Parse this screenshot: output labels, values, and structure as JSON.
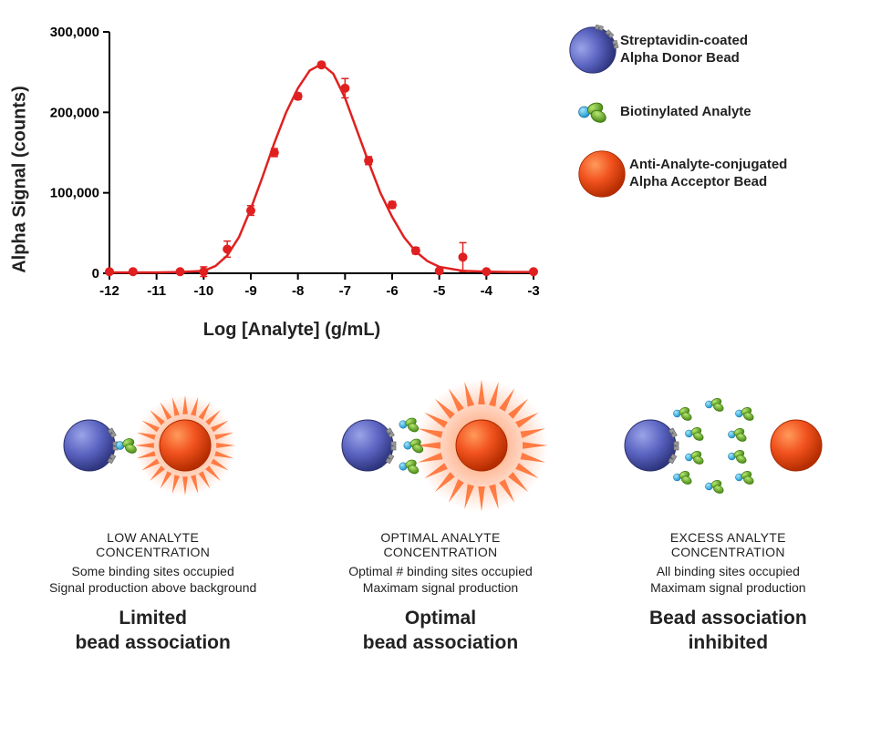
{
  "chart": {
    "type": "scatter-line",
    "ylabel": "Alpha Signal (counts)",
    "xlabel": "Log [Analyte] (g/mL)",
    "ylim": [
      0,
      300000
    ],
    "xlim": [
      -12,
      -3
    ],
    "ytick_step": 100000,
    "ytick_labels": [
      "0",
      "100,000",
      "200,000",
      "300,000"
    ],
    "xtick_step": 1,
    "xtick_labels": [
      "-12",
      "-11",
      "-10",
      "-9",
      "-8",
      "-7",
      "-6",
      "-5",
      "-4",
      "-3"
    ],
    "label_fontsize": 20,
    "tick_fontsize": 15,
    "line_color": "#e02020",
    "line_width": 2.5,
    "marker_color": "#e02020",
    "marker_size": 5,
    "error_bar_color": "#e02020",
    "background_color": "#ffffff",
    "axis_color": "#000000",
    "points_x": [
      -12,
      -11.5,
      -10.5,
      -10,
      -9.5,
      -9,
      -8.5,
      -8,
      -7.5,
      -7,
      -6.5,
      -6,
      -5.5,
      -5,
      -4.5,
      -4,
      -3
    ],
    "points_y": [
      2000,
      2000,
      2000,
      2000,
      30000,
      78000,
      150000,
      220000,
      259000,
      230000,
      140000,
      85000,
      28000,
      3000,
      20000,
      2000,
      2000
    ],
    "error_y": [
      2000,
      1000,
      1000,
      6000,
      10000,
      6000,
      5000,
      4000,
      3000,
      12000,
      5000,
      4000,
      4000,
      2000,
      18000,
      1000,
      1000
    ],
    "curve_x": [
      -12,
      -11.5,
      -11,
      -10.5,
      -10,
      -9.75,
      -9.5,
      -9.25,
      -9,
      -8.75,
      -8.5,
      -8.25,
      -8,
      -7.75,
      -7.5,
      -7.25,
      -7,
      -6.75,
      -6.5,
      -6.25,
      -6,
      -5.75,
      -5.5,
      -5.25,
      -5,
      -4.5,
      -4,
      -3.5,
      -3
    ],
    "curve_y": [
      1000,
      1000,
      1000,
      1500,
      3000,
      9000,
      22000,
      45000,
      80000,
      120000,
      162000,
      200000,
      230000,
      252000,
      260000,
      248000,
      218000,
      178000,
      138000,
      100000,
      70000,
      45000,
      27000,
      15000,
      8000,
      3000,
      2000,
      1500,
      1500
    ]
  },
  "legend": {
    "donor": "Streptavidin-coated\nAlpha Donor Bead",
    "analyte": "Biotinylated Analyte",
    "acceptor": "Anti-Analyte-conjugated\nAlpha Acceptor Bead"
  },
  "colors": {
    "donor_fill": "#5a63c0",
    "donor_edge": "#2a2f6a",
    "streptavidin": "#999999",
    "biotin_head": "#3fb6e8",
    "analyte_green": "#6fb32a",
    "analyte_green_dark": "#3d7a10",
    "acceptor_fill": "#f24d1a",
    "acceptor_edge": "#a82a00",
    "antibody": "#5e9625",
    "glow": "#ff6a2a"
  },
  "scenarios": [
    {
      "title": "LOW ANALYTE\nCONCENTRATION",
      "sub": "Some binding sites occupied\nSignal production above background",
      "bold": "Limited\nbead association"
    },
    {
      "title": "OPTIMAL ANALYTE\nCONCENTRATION",
      "sub": "Optimal # binding sites occupied\nMaximam signal production",
      "bold": "Optimal\nbead association"
    },
    {
      "title": "EXCESS ANALYTE\nCONCENTRATION",
      "sub": "All binding sites occupied\nMaximam signal production",
      "bold": "Bead association\ninhibited"
    }
  ]
}
